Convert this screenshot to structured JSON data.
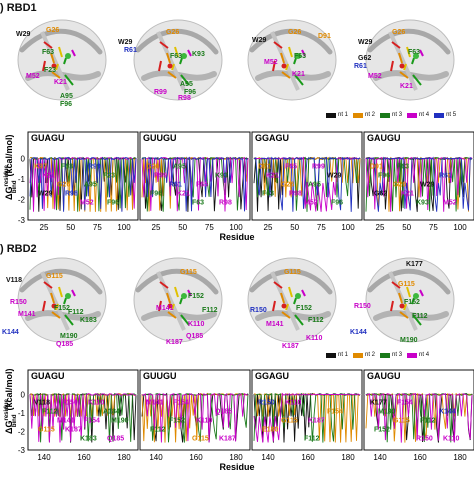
{
  "sections": [
    {
      "label": ") RBD1",
      "structures": [
        {
          "labels": [
            {
              "t": "W29",
              "c": "#111111"
            },
            {
              "t": "G26",
              "c": "#e08a00"
            },
            {
              "t": "F63",
              "c": "#1a7a1a"
            },
            {
              "t": "F23",
              "c": "#1a7a1a"
            },
            {
              "t": "M52",
              "c": "#c800c8"
            },
            {
              "t": "K21",
              "c": "#c800c8"
            },
            {
              "t": "A95",
              "c": "#1a7a1a"
            },
            {
              "t": "F96",
              "c": "#1a7a1a"
            },
            {
              "t": "R98",
              "c": "#2030c0"
            },
            {
              "t": "R99",
              "c": "#2030c0"
            }
          ]
        },
        {
          "labels": [
            {
              "t": "W29",
              "c": "#111111"
            },
            {
              "t": "G26",
              "c": "#e08a00"
            },
            {
              "t": "R61",
              "c": "#2030c0"
            },
            {
              "t": "F63",
              "c": "#1a7a1a"
            },
            {
              "t": "K93",
              "c": "#1a7a1a"
            },
            {
              "t": "A95",
              "c": "#1a7a1a"
            },
            {
              "t": "F96",
              "c": "#1a7a1a"
            },
            {
              "t": "R99",
              "c": "#c800c8"
            },
            {
              "t": "R98",
              "c": "#c800c8"
            }
          ]
        },
        {
          "labels": [
            {
              "t": "W29",
              "c": "#111111"
            },
            {
              "t": "G26",
              "c": "#e08a00"
            },
            {
              "t": "D91",
              "c": "#e08a00"
            },
            {
              "t": "F63",
              "c": "#1a7a1a"
            },
            {
              "t": "M52",
              "c": "#c800c8"
            },
            {
              "t": "K21",
              "c": "#c800c8"
            }
          ]
        },
        {
          "labels": [
            {
              "t": "W29",
              "c": "#111111"
            },
            {
              "t": "G26",
              "c": "#e08a00"
            },
            {
              "t": "G62",
              "c": "#111111"
            },
            {
              "t": "R61",
              "c": "#2030c0"
            },
            {
              "t": "F63",
              "c": "#1a7a1a"
            },
            {
              "t": "M52",
              "c": "#c800c8"
            },
            {
              "t": "K21",
              "c": "#c800c8"
            }
          ]
        }
      ],
      "legend": [
        "nt 1",
        "nt 2",
        "nt 3",
        "nt 4",
        "nt 5"
      ],
      "y_axis_label": "ΔG",
      "y_axis_super": "residue",
      "y_axis_sub": "bind",
      "y_axis_unit": "(kcal/mol)",
      "x_axis_label": "Residue",
      "x_ticks": [
        "25",
        "50",
        "75",
        "100"
      ],
      "panels": [
        {
          "title": "GUAGU",
          "ann": [
            {
              "t": "K97",
              "c": "#e08a00"
            },
            {
              "t": "G26",
              "c": "#e08a00"
            },
            {
              "t": "M52",
              "c": "#c800c8"
            },
            {
              "t": "F23",
              "c": "#1a7a1a"
            },
            {
              "t": "W29",
              "c": "#111111"
            },
            {
              "t": "F63",
              "c": "#1a7a1a"
            },
            {
              "t": "A95",
              "c": "#1a7a1a"
            },
            {
              "t": "F96",
              "c": "#1a7a1a"
            },
            {
              "t": "K21",
              "c": "#c800c8"
            },
            {
              "t": "R98",
              "c": "#2030c0"
            },
            {
              "t": "R99",
              "c": "#2030c0"
            }
          ]
        },
        {
          "title": "GUUGU",
          "ann": [
            {
              "t": "G26",
              "c": "#e08a00"
            },
            {
              "t": "R61",
              "c": "#2030c0"
            },
            {
              "t": "F63",
              "c": "#1a7a1a"
            },
            {
              "t": "K93",
              "c": "#1a7a1a"
            },
            {
              "t": "F96",
              "c": "#1a7a1a"
            },
            {
              "t": "A95",
              "c": "#1a7a1a"
            },
            {
              "t": "F65",
              "c": "#c800c8"
            },
            {
              "t": "R98",
              "c": "#c800c8"
            },
            {
              "t": "R99",
              "c": "#c800c8"
            },
            {
              "t": "K21",
              "c": "#c800c8"
            }
          ]
        },
        {
          "title": "GGAGU",
          "ann": [
            {
              "t": "D91",
              "c": "#e08a00"
            },
            {
              "t": "G26",
              "c": "#e08a00"
            },
            {
              "t": "M52",
              "c": "#c800c8"
            },
            {
              "t": "W29",
              "c": "#111111"
            },
            {
              "t": "F63",
              "c": "#1a7a1a"
            },
            {
              "t": "F65",
              "c": "#c800c8"
            },
            {
              "t": "A95",
              "c": "#1a7a1a"
            },
            {
              "t": "F96",
              "c": "#1a7a1a"
            },
            {
              "t": "K21",
              "c": "#c800c8"
            },
            {
              "t": "R98",
              "c": "#c800c8"
            },
            {
              "t": "R99",
              "c": "#c800c8"
            }
          ]
        },
        {
          "title": "GAUGU",
          "ann": [
            {
              "t": "D91",
              "c": "#e08a00"
            },
            {
              "t": "G26",
              "c": "#e08a00"
            },
            {
              "t": "K93",
              "c": "#1a7a1a"
            },
            {
              "t": "R61",
              "c": "#2030c0"
            },
            {
              "t": "G62",
              "c": "#111111"
            },
            {
              "t": "F63",
              "c": "#1a7a1a"
            },
            {
              "t": "W29",
              "c": "#111111"
            },
            {
              "t": "M52",
              "c": "#c800c8"
            },
            {
              "t": "F96",
              "c": "#1a7a1a"
            },
            {
              "t": "K21",
              "c": "#c800c8"
            }
          ]
        }
      ]
    },
    {
      "label": ") RBD2",
      "structures": [
        {
          "labels": [
            {
              "t": "V118",
              "c": "#111111"
            },
            {
              "t": "G115",
              "c": "#e08a00"
            },
            {
              "t": "R150",
              "c": "#c800c8"
            },
            {
              "t": "M141",
              "c": "#c800c8"
            },
            {
              "t": "F152",
              "c": "#1a7a1a"
            },
            {
              "t": "F112",
              "c": "#1a7a1a"
            },
            {
              "t": "K183",
              "c": "#1a7a1a"
            },
            {
              "t": "K144",
              "c": "#2030c0"
            },
            {
              "t": "M190",
              "c": "#1a7a1a"
            },
            {
              "t": "Q185",
              "c": "#c800c8"
            },
            {
              "t": "K187",
              "c": "#c800c8"
            }
          ]
        },
        {
          "labels": [
            {
              "t": "G115",
              "c": "#e08a00"
            },
            {
              "t": "F152",
              "c": "#1a7a1a"
            },
            {
              "t": "M141",
              "c": "#c800c8"
            },
            {
              "t": "F112",
              "c": "#1a7a1a"
            },
            {
              "t": "K110",
              "c": "#c800c8"
            },
            {
              "t": "Q185",
              "c": "#c800c8"
            },
            {
              "t": "K187",
              "c": "#c800c8"
            }
          ]
        },
        {
          "labels": [
            {
              "t": "G115",
              "c": "#e08a00"
            },
            {
              "t": "R150",
              "c": "#2030c0"
            },
            {
              "t": "F152",
              "c": "#1a7a1a"
            },
            {
              "t": "F112",
              "c": "#1a7a1a"
            },
            {
              "t": "M141",
              "c": "#c800c8"
            },
            {
              "t": "K110",
              "c": "#c800c8"
            },
            {
              "t": "K187",
              "c": "#c800c8"
            }
          ]
        },
        {
          "labels": [
            {
              "t": "K177",
              "c": "#111111"
            },
            {
              "t": "G115",
              "c": "#e08a00"
            },
            {
              "t": "R150",
              "c": "#c800c8"
            },
            {
              "t": "F152",
              "c": "#1a7a1a"
            },
            {
              "t": "F112",
              "c": "#1a7a1a"
            },
            {
              "t": "K144",
              "c": "#2030c0"
            },
            {
              "t": "M190",
              "c": "#1a7a1a"
            }
          ]
        }
      ],
      "legend": [
        "nt 1",
        "nt 2",
        "nt 3",
        "nt 4"
      ],
      "y_axis_label": "ΔG",
      "y_axis_super": "residue",
      "y_axis_sub": "bind",
      "y_axis_unit": "(kcal/mol)",
      "x_axis_label": "Residue",
      "x_ticks": [
        "140",
        "160",
        "180"
      ],
      "panels": [
        {
          "title": "GUAGU",
          "ann": [
            {
              "t": "V118",
              "c": "#111111"
            },
            {
              "t": "M141",
              "c": "#c800c8"
            },
            {
              "t": "K183",
              "c": "#1a7a1a"
            },
            {
              "t": "A184",
              "c": "#1a7a1a"
            },
            {
              "t": "G115",
              "c": "#e08a00"
            },
            {
              "t": "R150",
              "c": "#c800c8"
            },
            {
              "t": "F154",
              "c": "#c800c8"
            },
            {
              "t": "Q185",
              "c": "#c800c8"
            },
            {
              "t": "F112",
              "c": "#1a7a1a"
            },
            {
              "t": "K187",
              "c": "#c800c8"
            },
            {
              "t": "K110",
              "c": "#c800c8"
            },
            {
              "t": "M190",
              "c": "#1a7a1a"
            }
          ]
        },
        {
          "title": "GUUGU",
          "ann": [
            {
              "t": "M141",
              "c": "#c800c8"
            },
            {
              "t": "F152",
              "c": "#1a7a1a"
            },
            {
              "t": "G115",
              "c": "#e08a00"
            },
            {
              "t": "Q185",
              "c": "#c800c8"
            },
            {
              "t": "F112",
              "c": "#1a7a1a"
            },
            {
              "t": "F154",
              "c": "#c800c8"
            },
            {
              "t": "K110",
              "c": "#c800c8"
            },
            {
              "t": "K187",
              "c": "#c800c8"
            }
          ]
        },
        {
          "title": "GGAGU",
          "ann": [
            {
              "t": "R150",
              "c": "#2030c0"
            },
            {
              "t": "G115",
              "c": "#e08a00"
            },
            {
              "t": "F112",
              "c": "#1a7a1a"
            },
            {
              "t": "F154",
              "c": "#e08a00"
            },
            {
              "t": "E180",
              "c": "#e08a00"
            },
            {
              "t": "K110",
              "c": "#c800c8"
            },
            {
              "t": "K187",
              "c": "#c800c8"
            }
          ]
        },
        {
          "title": "GAUGU",
          "ann": [
            {
              "t": "K177",
              "c": "#111111"
            },
            {
              "t": "G115",
              "c": "#e08a00"
            },
            {
              "t": "R150",
              "c": "#c800c8"
            },
            {
              "t": "K144",
              "c": "#2030c0"
            },
            {
              "t": "F152",
              "c": "#1a7a1a"
            },
            {
              "t": "F154",
              "c": "#c800c8"
            },
            {
              "t": "F112",
              "c": "#1a7a1a"
            },
            {
              "t": "K110",
              "c": "#c800c8"
            },
            {
              "t": "M190",
              "c": "#1a7a1a"
            }
          ]
        }
      ]
    }
  ],
  "series_colors": [
    "#111111",
    "#e08a00",
    "#1a7a1a",
    "#c800c8",
    "#2030c0"
  ],
  "chart_data": [
    {
      "type": "line",
      "panel": "RBD1 GUAGU",
      "x": [
        15,
        21,
        23,
        26,
        29,
        52,
        63,
        65,
        95,
        96,
        97,
        98,
        99,
        100
      ],
      "series": [
        {
          "name": "nt 1",
          "values": [
            0,
            -0.2,
            -2.0,
            -0.3,
            -3.0,
            0,
            -0.4,
            0,
            -0.2,
            -0.3,
            0,
            0,
            0,
            0
          ]
        },
        {
          "name": "nt 2",
          "values": [
            0,
            0,
            0,
            -1.0,
            0,
            0,
            -0.2,
            0,
            -0.3,
            -0.2,
            -1.2,
            0,
            0,
            0
          ]
        },
        {
          "name": "nt 3",
          "values": [
            0,
            0,
            -1.2,
            0,
            0,
            0,
            -1.8,
            -0.5,
            -1.6,
            -1.8,
            0,
            -0.3,
            0,
            0
          ]
        },
        {
          "name": "nt 4",
          "values": [
            0,
            -1.8,
            0,
            0,
            0,
            -1.0,
            0,
            -0.5,
            0,
            0,
            0,
            -2.0,
            -1.6,
            0
          ]
        },
        {
          "name": "nt 5",
          "values": [
            0,
            0,
            0,
            0,
            0,
            0,
            0,
            0,
            0,
            0,
            0,
            -1.8,
            -2.4,
            0
          ]
        }
      ],
      "xlim": [
        15,
        100
      ],
      "ylim": [
        -3,
        1
      ]
    }
  ]
}
